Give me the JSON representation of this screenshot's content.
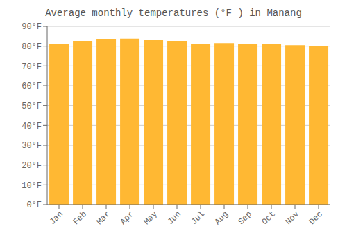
{
  "chart_data": {
    "type": "bar",
    "title": "Average monthly temperatures (°F ) in Manang",
    "categories": [
      "Jan",
      "Feb",
      "Mar",
      "Apr",
      "May",
      "Jun",
      "Jul",
      "Aug",
      "Sep",
      "Oct",
      "Nov",
      "Dec"
    ],
    "values": [
      81.0,
      82.5,
      83.5,
      83.8,
      83.0,
      82.5,
      81.2,
      81.5,
      81.0,
      81.0,
      80.5,
      80.2
    ],
    "color": "#FFB833",
    "ylim": [
      0,
      90
    ],
    "yticks": [
      {
        "value": 0,
        "label": "0°F"
      },
      {
        "value": 10,
        "label": "10°F"
      },
      {
        "value": 20,
        "label": "20°F"
      },
      {
        "value": 30,
        "label": "30°F"
      },
      {
        "value": 40,
        "label": "40°F"
      },
      {
        "value": 50,
        "label": "50°F"
      },
      {
        "value": 60,
        "label": "60°F"
      },
      {
        "value": 70,
        "label": "70°F"
      },
      {
        "value": 80,
        "label": "80°F"
      },
      {
        "value": 90,
        "label": "90°F"
      }
    ],
    "grid": true
  }
}
